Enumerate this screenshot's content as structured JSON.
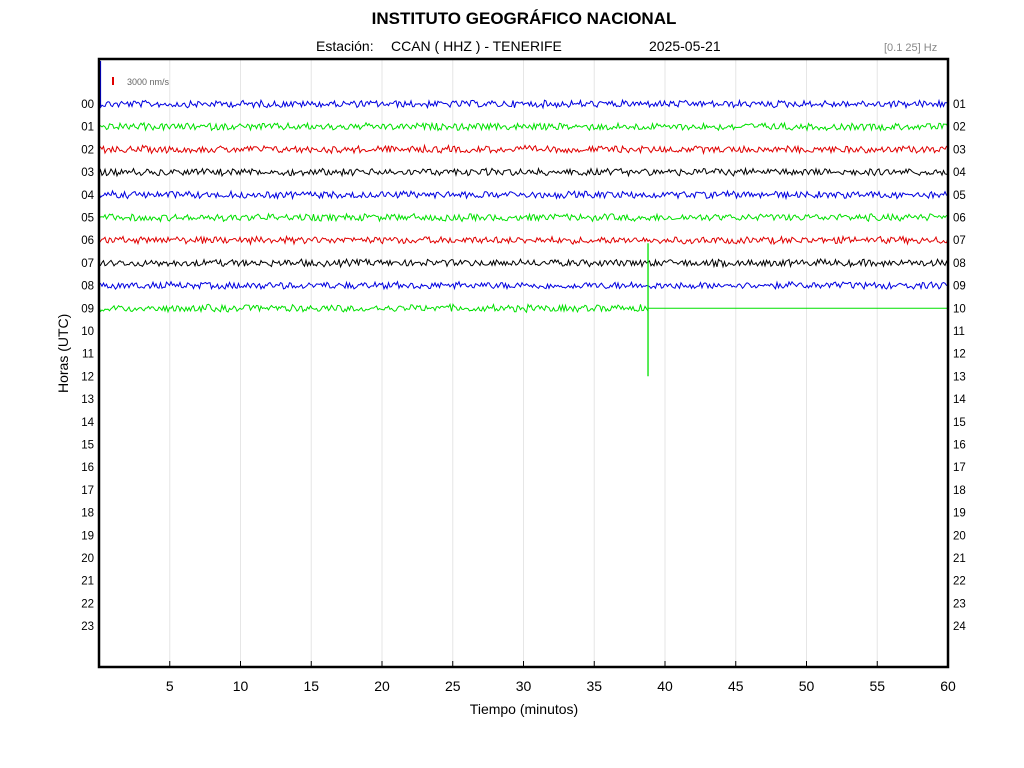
{
  "header": {
    "title": "INSTITUTO GEOGRÁFICO NACIONAL",
    "station_label": "Estación:",
    "station": "CCAN ( HHZ ) - TENERIFE",
    "date": "2025-05-21",
    "filter": "[0.1 25] Hz"
  },
  "scale": {
    "label": "3000 nm/s",
    "color": "#e00000"
  },
  "chart_data": {
    "type": "line",
    "title": "INSTITUTO GEOGRÁFICO NACIONAL",
    "xlabel": "Tiempo (minutos)",
    "ylabel": "Horas (UTC)",
    "xlim": [
      0,
      60
    ],
    "x_ticks": [
      5,
      10,
      15,
      20,
      25,
      30,
      35,
      40,
      45,
      50,
      55,
      60
    ],
    "left_labels": [
      "00",
      "01",
      "02",
      "03",
      "04",
      "05",
      "06",
      "07",
      "08",
      "09",
      "10",
      "11",
      "12",
      "13",
      "14",
      "15",
      "16",
      "17",
      "18",
      "19",
      "20",
      "21",
      "22",
      "23"
    ],
    "right_labels": [
      "01",
      "02",
      "03",
      "04",
      "05",
      "06",
      "07",
      "08",
      "09",
      "10",
      "11",
      "12",
      "13",
      "14",
      "15",
      "16",
      "17",
      "18",
      "19",
      "20",
      "21",
      "22",
      "23",
      "24"
    ],
    "grid": true,
    "trace_colors": [
      "#0000e0",
      "#00e000",
      "#e00000",
      "#000000"
    ],
    "recorded_rows": 10,
    "last_row_end_minute": 38.8,
    "event": {
      "row": 9,
      "minute": 38.8,
      "label": ""
    }
  }
}
